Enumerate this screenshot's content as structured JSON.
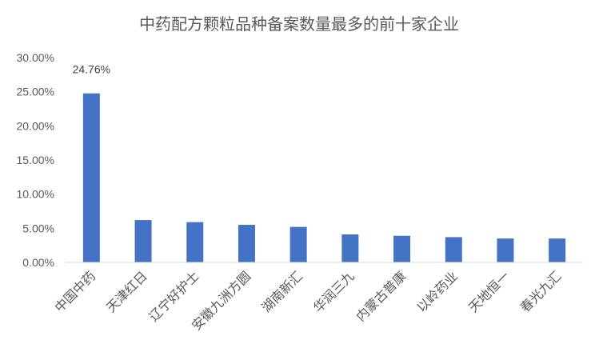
{
  "chart_data": {
    "type": "bar",
    "title": "中药配方颗粒品种备案数量最多的前十家企业",
    "xlabel": "",
    "ylabel": "",
    "categories": [
      "中国中药",
      "天津红日",
      "辽宁好护士",
      "安徽九洲方圆",
      "湖南新汇",
      "华润三九",
      "内蒙古普康",
      "以岭药业",
      "天地恒一",
      "春光九汇"
    ],
    "series": [
      {
        "values": [
          24.76,
          6.2,
          5.9,
          5.5,
          5.2,
          4.1,
          3.9,
          3.7,
          3.5,
          3.5
        ]
      }
    ],
    "ylim": [
      0,
      30
    ],
    "yticks": [
      "0.00%",
      "5.00%",
      "10.00%",
      "15.00%",
      "20.00%",
      "25.00%",
      "30.00%"
    ],
    "data_labels": [
      {
        "index": 0,
        "text": "24.76%"
      }
    ],
    "bar_color": "#4472C4",
    "axis_color": "#D9D9D9",
    "grid": false,
    "legend": "none"
  }
}
